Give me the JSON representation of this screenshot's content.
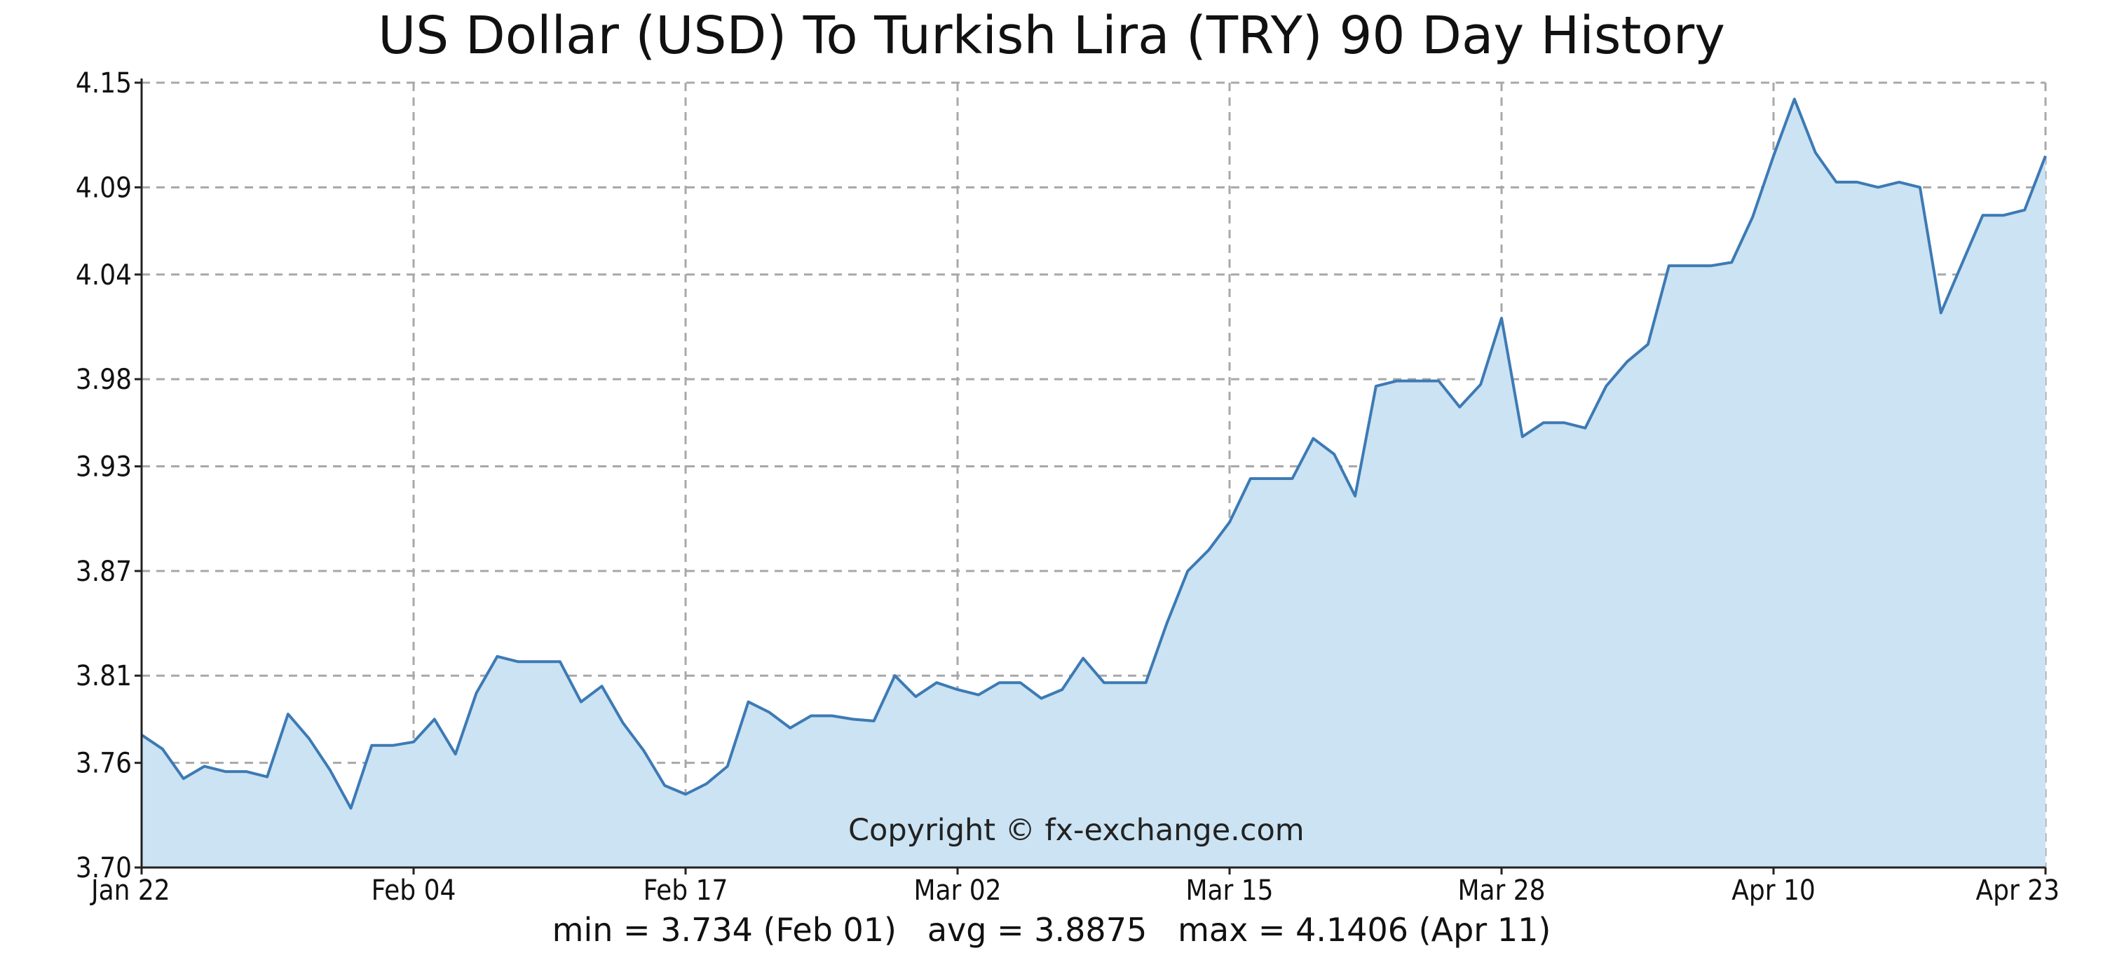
{
  "chart_data": {
    "type": "area",
    "title": "US Dollar (USD) To Turkish Lira (TRY) 90 Day History",
    "xlabel": "",
    "ylabel": "",
    "ylim": [
      3.7,
      4.15
    ],
    "y_ticks": [
      "3.70",
      "3.76",
      "3.81",
      "3.87",
      "3.93",
      "3.98",
      "4.04",
      "4.09",
      "4.15"
    ],
    "x_ticks": [
      {
        "label": "Jan 22",
        "day": 0
      },
      {
        "label": "Feb 04",
        "day": 13
      },
      {
        "label": "Feb 17",
        "day": 26
      },
      {
        "label": "Mar 02",
        "day": 39
      },
      {
        "label": "Mar 15",
        "day": 52
      },
      {
        "label": "Mar 28",
        "day": 65
      },
      {
        "label": "Apr 10",
        "day": 78
      },
      {
        "label": "Apr 23",
        "day": 91
      }
    ],
    "grid": true,
    "series": [
      {
        "values": [
          [
            0,
            3.776
          ],
          [
            1,
            3.768
          ],
          [
            2,
            3.751
          ],
          [
            3,
            3.758
          ],
          [
            4,
            3.755
          ],
          [
            5,
            3.755
          ],
          [
            6,
            3.752
          ],
          [
            7,
            3.788
          ],
          [
            8,
            3.774
          ],
          [
            9,
            3.756
          ],
          [
            10,
            3.734
          ],
          [
            11,
            3.77
          ],
          [
            12,
            3.77
          ],
          [
            13,
            3.772
          ],
          [
            14,
            3.785
          ],
          [
            15,
            3.765
          ],
          [
            16,
            3.8
          ],
          [
            17,
            3.821
          ],
          [
            18,
            3.818
          ],
          [
            19,
            3.818
          ],
          [
            20,
            3.818
          ],
          [
            21,
            3.795
          ],
          [
            22,
            3.804
          ],
          [
            23,
            3.783
          ],
          [
            24,
            3.767
          ],
          [
            25,
            3.747
          ],
          [
            26,
            3.742
          ],
          [
            27,
            3.748
          ],
          [
            28,
            3.758
          ],
          [
            29,
            3.795
          ],
          [
            30,
            3.789
          ],
          [
            31,
            3.78
          ],
          [
            32,
            3.787
          ],
          [
            33,
            3.787
          ],
          [
            34,
            3.785
          ],
          [
            35,
            3.784
          ],
          [
            36,
            3.81
          ],
          [
            37,
            3.798
          ],
          [
            38,
            3.806
          ],
          [
            39,
            3.802
          ],
          [
            40,
            3.799
          ],
          [
            41,
            3.806
          ],
          [
            42,
            3.806
          ],
          [
            43,
            3.797
          ],
          [
            44,
            3.802
          ],
          [
            45,
            3.82
          ],
          [
            46,
            3.806
          ],
          [
            47,
            3.806
          ],
          [
            48,
            3.806
          ],
          [
            49,
            3.84
          ],
          [
            50,
            3.87
          ],
          [
            51,
            3.882
          ],
          [
            52,
            3.898
          ],
          [
            53,
            3.923
          ],
          [
            54,
            3.923
          ],
          [
            55,
            3.923
          ],
          [
            56,
            3.946
          ],
          [
            57,
            3.937
          ],
          [
            58,
            3.913
          ],
          [
            59,
            3.976
          ],
          [
            60,
            3.979
          ],
          [
            61,
            3.979
          ],
          [
            62,
            3.979
          ],
          [
            63,
            3.964
          ],
          [
            64,
            3.977
          ],
          [
            65,
            4.015
          ],
          [
            66,
            3.947
          ],
          [
            67,
            3.955
          ],
          [
            68,
            3.955
          ],
          [
            69,
            3.952
          ],
          [
            70,
            3.976
          ],
          [
            71,
            3.99
          ],
          [
            72,
            4.0
          ],
          [
            73,
            4.045
          ],
          [
            74,
            4.045
          ],
          [
            75,
            4.045
          ],
          [
            76,
            4.047
          ],
          [
            77,
            4.073
          ],
          [
            78,
            4.108
          ],
          [
            79,
            4.1406
          ],
          [
            80,
            4.11
          ],
          [
            81,
            4.093
          ],
          [
            82,
            4.093
          ],
          [
            83,
            4.09
          ],
          [
            84,
            4.093
          ],
          [
            85,
            4.09
          ],
          [
            86,
            4.018
          ],
          [
            87,
            4.046
          ],
          [
            88,
            4.074
          ],
          [
            89,
            4.074
          ],
          [
            90,
            4.077
          ],
          [
            91,
            4.108
          ]
        ]
      }
    ],
    "line_color": "#3d7ab5",
    "fill_color": "#cbe3f2",
    "grid_color": "#a8a8a8",
    "watermark": "Copyright © fx-exchange.com",
    "stats": "min = 3.734 (Feb 01)   avg = 3.8875   max = 4.1406 (Apr 11)"
  }
}
